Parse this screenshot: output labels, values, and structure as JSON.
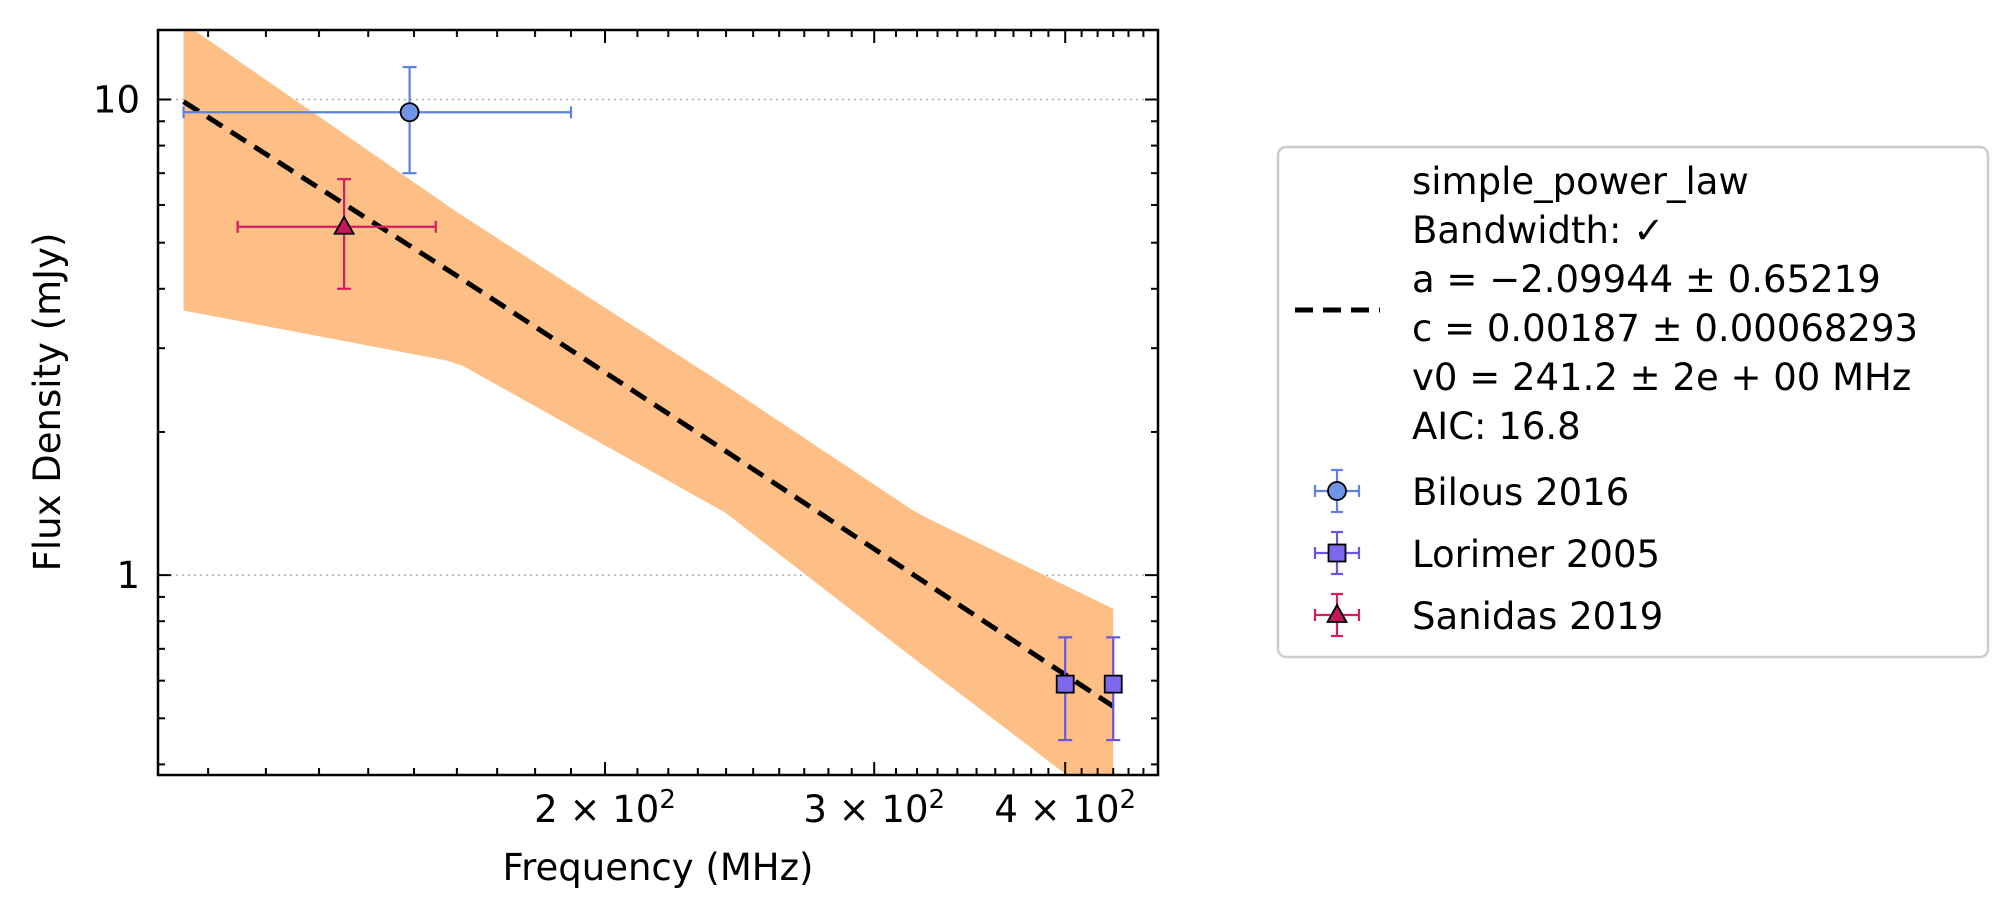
{
  "chart_data": {
    "type": "scatter",
    "xlabel": "Frequency (MHz)",
    "ylabel": "Flux Density (mJy)",
    "xscale": "log",
    "yscale": "log",
    "xlim": [
      102,
      460
    ],
    "ylim": [
      0.38,
      14
    ],
    "x_ticks": [
      {
        "value": 200,
        "base": "2 × 10",
        "exp": "2"
      },
      {
        "value": 300,
        "base": "3 × 10",
        "exp": "2"
      },
      {
        "value": 400,
        "base": "4 × 10",
        "exp": "2"
      }
    ],
    "y_ticks": [
      {
        "value": 1,
        "label": "1"
      },
      {
        "value": 10,
        "label": "10"
      }
    ],
    "grid": "horizontal dotted at y-major ticks",
    "legend_position": "right, outside plot",
    "fit": {
      "model": "simple_power_law",
      "legend_lines": [
        "simple_power_law",
        "Bandwidth: ✓",
        "a = −2.09944 ± 0.65219",
        "c = 0.00187 ± 0.00068293",
        "v0 = 241.2 ± 2e + 00 MHz",
        "AIC: 16.8"
      ],
      "x": [
        106,
        160,
        240,
        320,
        430
      ],
      "y": [
        9.9,
        4.26,
        1.82,
        0.99,
        0.53
      ],
      "band_upper": [
        14.5,
        5.8,
        2.5,
        1.35,
        0.85
      ],
      "band_lower": [
        3.6,
        2.8,
        1.35,
        0.66,
        0.32
      ],
      "color": "#000000",
      "band_color": "#fdbf86"
    },
    "series": [
      {
        "name": "Bilous 2016",
        "marker": "circle",
        "color": "#5b82e0",
        "fill": "#6f94e8",
        "points": [
          {
            "x": 149,
            "y": 9.4,
            "xerr_low": 106,
            "xerr_high": 190,
            "yerr_low": 7.0,
            "yerr_high": 11.7
          }
        ]
      },
      {
        "name": "Lorimer 2005",
        "marker": "square",
        "color": "#6a56dc",
        "fill": "#7b68ee",
        "points": [
          {
            "x": 400,
            "y": 0.59,
            "yerr_low": 0.45,
            "yerr_high": 0.74
          },
          {
            "x": 430,
            "y": 0.59,
            "yerr_low": 0.45,
            "yerr_high": 0.74
          }
        ]
      },
      {
        "name": "Sanidas 2019",
        "marker": "triangle",
        "color": "#d81b60",
        "fill": "#c2185b",
        "points": [
          {
            "x": 135,
            "y": 5.4,
            "xerr_low": 115,
            "xerr_high": 155,
            "yerr_low": 4.0,
            "yerr_high": 6.8
          }
        ]
      }
    ]
  }
}
